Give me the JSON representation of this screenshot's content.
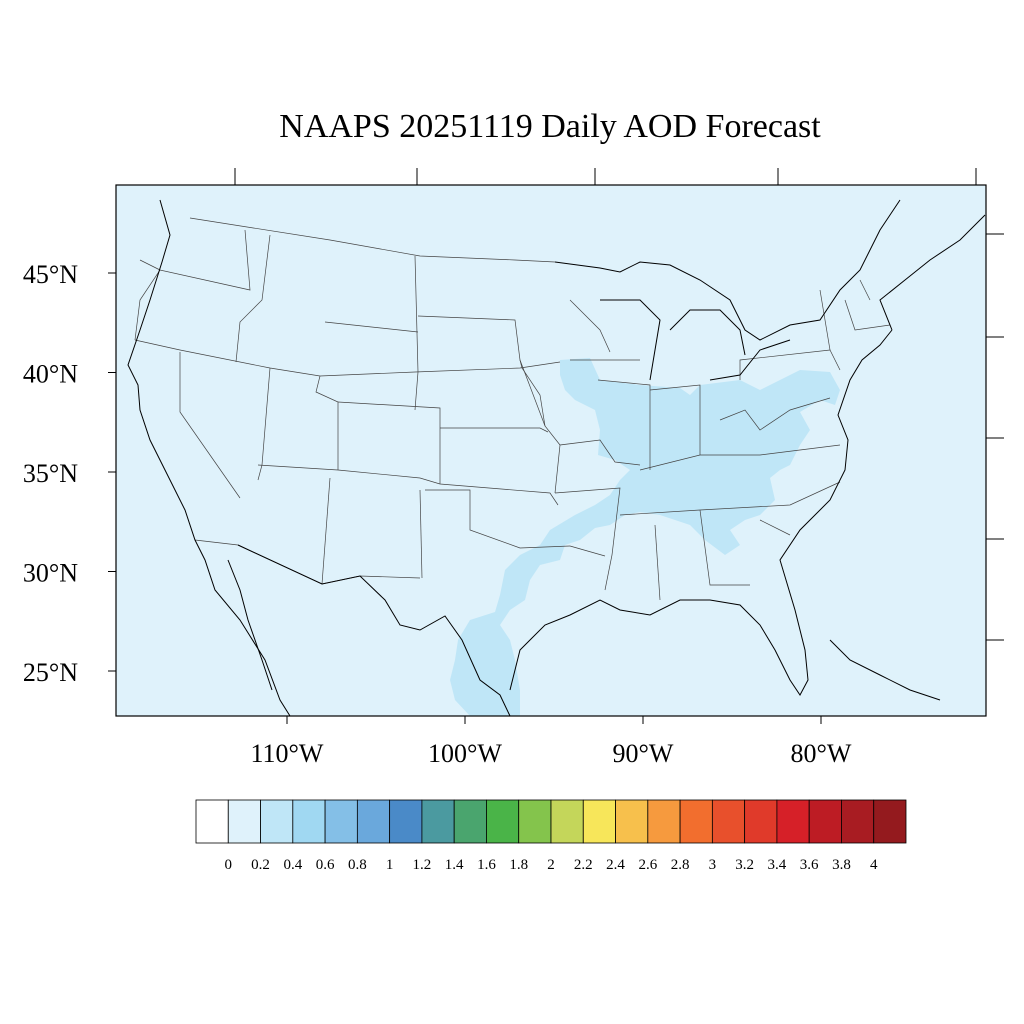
{
  "title": "NAAPS 20251119 Daily AOD Forecast",
  "map": {
    "background_color": "#dff2fb",
    "lat_labels": [
      "45°N",
      "40°N",
      "35°N",
      "30°N",
      "25°N"
    ],
    "lon_labels": [
      "110°W",
      "100°W",
      "90°W",
      "80°W"
    ],
    "lat_values": [
      45,
      40,
      35,
      30,
      25
    ],
    "lon_values": [
      -110,
      -100,
      -90,
      -80
    ],
    "aod_region_color": "#bfe6f7"
  },
  "colorbar": {
    "colors": [
      "#ffffff",
      "#dff2fb",
      "#bfe6f7",
      "#a0d8f2",
      "#84bfe7",
      "#6aa8dc",
      "#4a8ac8",
      "#4b9aa0",
      "#4aa56e",
      "#4ab448",
      "#84c44c",
      "#c4d65a",
      "#f7e65a",
      "#f7c04c",
      "#f69a3e",
      "#f26e2e",
      "#e8502c",
      "#e03a2a",
      "#d62028",
      "#bd1c24",
      "#a81c22",
      "#941a1e"
    ],
    "labels": [
      "0",
      "0.2",
      "0.4",
      "0.6",
      "0.8",
      "1",
      "1.2",
      "1.4",
      "1.6",
      "1.8",
      "2",
      "2.2",
      "2.4",
      "2.6",
      "2.8",
      "3",
      "3.2",
      "3.4",
      "3.6",
      "3.8",
      "4"
    ]
  }
}
